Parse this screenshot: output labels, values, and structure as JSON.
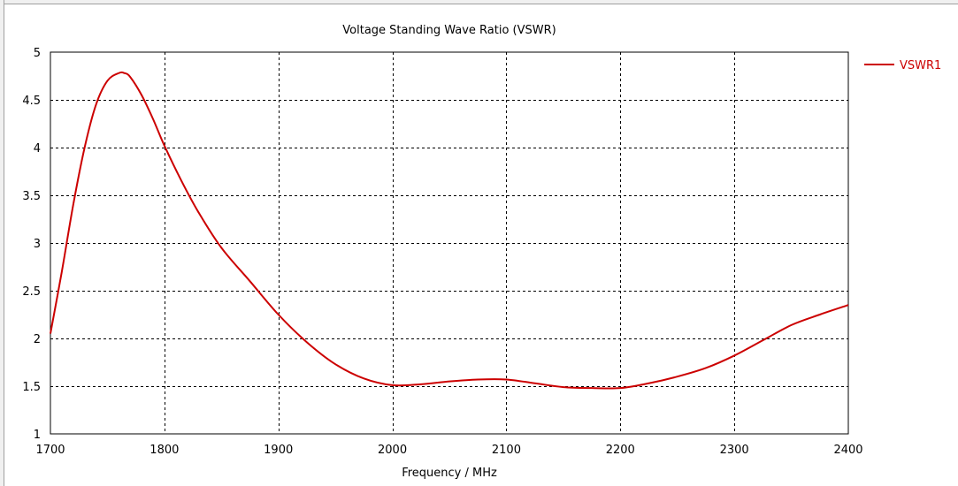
{
  "chart_data": {
    "type": "line",
    "title": "Voltage Standing Wave Ratio (VSWR)",
    "xlabel": "Frequency / MHz",
    "ylabel": "",
    "xlim": [
      1700,
      2400
    ],
    "ylim": [
      1,
      5
    ],
    "xticks": [
      1700,
      1800,
      1900,
      2000,
      2100,
      2200,
      2300,
      2400
    ],
    "xtick_labels": [
      "1700",
      "1800",
      "1900",
      "2000",
      "2100",
      "2200",
      "2300",
      "2400"
    ],
    "yticks": [
      1,
      1.5,
      2,
      2.5,
      3,
      3.5,
      4,
      4.5,
      5
    ],
    "ytick_labels": [
      "1",
      "1.5",
      "2",
      "2.5",
      "3",
      "3.5",
      "4",
      "4.5",
      "5"
    ],
    "grid": true,
    "legend_position": "right",
    "series": [
      {
        "name": "VSWR1",
        "color": "#cc0000",
        "x": [
          1700,
          1710,
          1720,
          1730,
          1740,
          1750,
          1760,
          1765,
          1770,
          1780,
          1790,
          1800,
          1815,
          1830,
          1850,
          1875,
          1900,
          1925,
          1950,
          1975,
          2000,
          2025,
          2050,
          2075,
          2100,
          2125,
          2150,
          2175,
          2200,
          2225,
          2250,
          2275,
          2300,
          2325,
          2350,
          2375,
          2400
        ],
        "y": [
          2.05,
          2.7,
          3.4,
          4.0,
          4.45,
          4.7,
          4.78,
          4.78,
          4.74,
          4.55,
          4.3,
          4.02,
          3.65,
          3.32,
          2.95,
          2.6,
          2.25,
          1.96,
          1.73,
          1.58,
          1.51,
          1.52,
          1.55,
          1.57,
          1.57,
          1.53,
          1.49,
          1.48,
          1.48,
          1.53,
          1.6,
          1.69,
          1.82,
          1.98,
          2.14,
          2.25,
          2.35
        ]
      }
    ]
  }
}
